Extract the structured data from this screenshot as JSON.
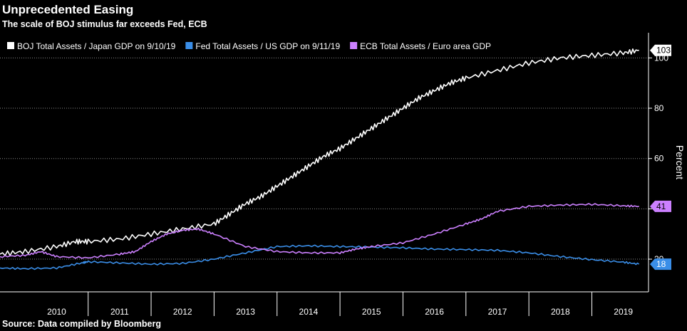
{
  "title": "Unprecedented Easing",
  "subtitle": "The scale of BOJ stimulus far exceeds Fed, ECB",
  "source": "Source: Data compiled by Bloomberg",
  "chart_data": {
    "type": "line",
    "ylabel": "Percent",
    "ylim": [
      7,
      110
    ],
    "yticks": [
      20,
      40,
      60,
      80,
      100
    ],
    "xlim": [
      2009.6,
      2019.9
    ],
    "x_ticks": [
      "2010",
      "2011",
      "2012",
      "2013",
      "2014",
      "2015",
      "2016",
      "2017",
      "2018",
      "2019"
    ],
    "grid": true,
    "legend_position": "top-left",
    "series": [
      {
        "name": "BOJ Total Assets / Japan GDP on 9/10/19",
        "color": "#ffffff",
        "last_value": "103",
        "x": [
          2009.6,
          2010.0,
          2010.5,
          2010.8,
          2011.0,
          2011.5,
          2012.0,
          2012.5,
          2013.0,
          2013.25,
          2013.5,
          2013.75,
          2014.0,
          2014.25,
          2014.5,
          2014.75,
          2015.0,
          2015.25,
          2015.5,
          2015.75,
          2016.0,
          2016.25,
          2016.5,
          2016.75,
          2017.0,
          2017.5,
          2018.0,
          2018.5,
          2019.0,
          2019.5,
          2019.75
        ],
        "y": [
          22,
          23,
          25,
          27,
          27,
          28,
          30,
          32,
          34,
          38,
          42,
          45,
          49,
          53,
          57,
          61,
          64,
          68,
          72,
          76,
          80,
          84,
          87,
          90,
          92,
          95,
          98,
          100,
          101,
          102,
          103
        ]
      },
      {
        "name": "Fed Total Assets / US GDP on 9/11/19",
        "color": "#3a8ee8",
        "last_value": "18",
        "x": [
          2009.6,
          2010.0,
          2010.5,
          2010.9,
          2011.0,
          2011.5,
          2012.0,
          2012.5,
          2013.0,
          2013.5,
          2014.0,
          2014.5,
          2015.0,
          2015.5,
          2016.0,
          2016.5,
          2017.0,
          2017.5,
          2018.0,
          2018.5,
          2019.0,
          2019.5,
          2019.75
        ],
        "y": [
          16.5,
          16.2,
          16.5,
          18.5,
          19,
          18.5,
          18,
          18.3,
          20,
          22.5,
          25,
          25.3,
          25,
          24.8,
          24.5,
          24,
          23.8,
          23.5,
          22.5,
          21,
          19.8,
          18.8,
          18
        ]
      },
      {
        "name": "ECB Total Assets / Euro area GDP",
        "color": "#cc80ff",
        "last_value": "41",
        "x": [
          2009.6,
          2010.0,
          2010.25,
          2010.5,
          2011.0,
          2011.5,
          2011.75,
          2012.0,
          2012.25,
          2012.5,
          2012.75,
          2013.0,
          2013.5,
          2014.0,
          2014.5,
          2015.0,
          2015.25,
          2015.5,
          2016.0,
          2016.5,
          2017.0,
          2017.25,
          2017.5,
          2018.0,
          2018.5,
          2019.0,
          2019.5,
          2019.75
        ],
        "y": [
          21,
          21.5,
          23,
          21,
          20.5,
          22,
          23,
          27,
          30,
          31.5,
          32,
          30,
          25,
          23,
          22.5,
          22.5,
          24,
          25,
          26.5,
          30,
          34,
          36,
          39,
          41,
          41.5,
          41.8,
          41.2,
          41
        ]
      }
    ]
  }
}
